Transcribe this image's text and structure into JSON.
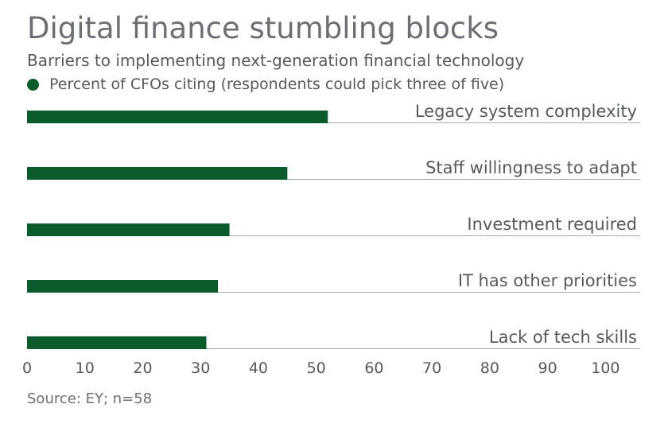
{
  "colors": {
    "bar": "#0b5c2c",
    "baseline": "#a7a9ac"
  },
  "chart_data": {
    "type": "bar",
    "orientation": "horizontal",
    "title": "Digital finance stumbling blocks",
    "subtitle": "Barriers to implementing next-generation financial technology",
    "legend": "Percent of CFOs citing (respondents could pick three of five)",
    "categories": [
      "Legacy system complexity",
      "Staff willingness to adapt",
      "Investment required",
      "IT has other priorities",
      "Lack of tech skills"
    ],
    "values": [
      52,
      45,
      35,
      33,
      31
    ],
    "xlim": [
      0,
      106
    ],
    "xticks": [
      0,
      10,
      20,
      30,
      40,
      50,
      60,
      70,
      80,
      90,
      100
    ],
    "source": "Source: EY; n=58"
  }
}
